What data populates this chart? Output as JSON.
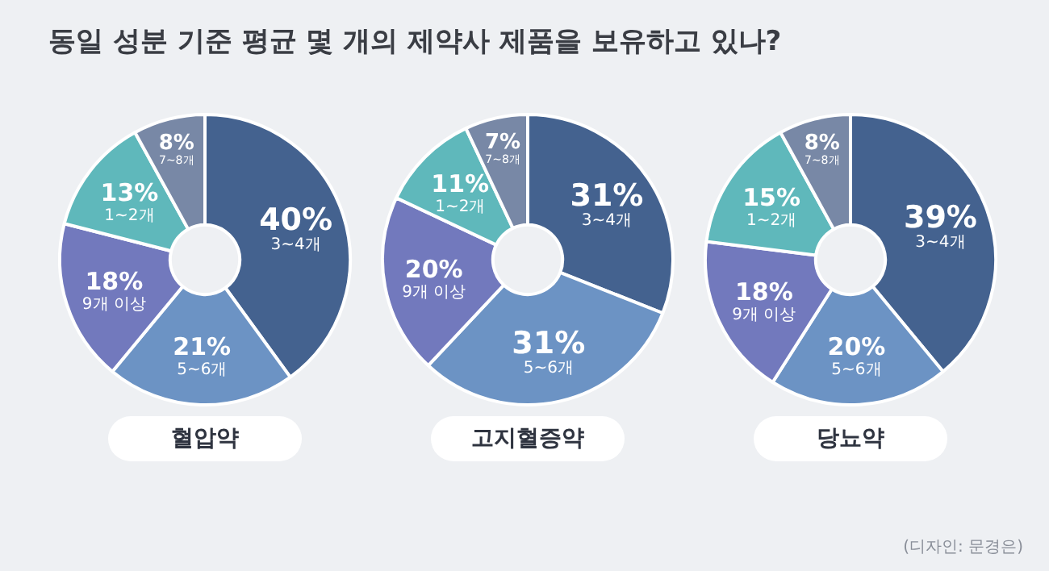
{
  "chart_data": [
    {
      "type": "donut",
      "title": "동일 성분 기준 평균 몇 개의 제약사 제품을  보유하고 있나?",
      "subtitle": "혈압약",
      "categories": [
        "3~4개",
        "5~6개",
        "9개 이상",
        "1~2개",
        "7~8개"
      ],
      "values": [
        40,
        21,
        18,
        13,
        8
      ],
      "value_labels": [
        "40%",
        "21%",
        "18%",
        "13%",
        "8%"
      ],
      "colors": [
        "#44628f",
        "#6c93c4",
        "#7279bd",
        "#5fb8bb",
        "#7888a6"
      ]
    },
    {
      "type": "donut",
      "subtitle": "고지혈증약",
      "categories": [
        "3~4개",
        "5~6개",
        "9개 이상",
        "1~2개",
        "7~8개"
      ],
      "values": [
        31,
        31,
        20,
        11,
        7
      ],
      "value_labels": [
        "31%",
        "31%",
        "20%",
        "11%",
        "7%"
      ],
      "colors": [
        "#44628f",
        "#6c93c4",
        "#7279bd",
        "#5fb8bb",
        "#7888a6"
      ]
    },
    {
      "type": "donut",
      "subtitle": "당뇨약",
      "categories": [
        "3~4개",
        "5~6개",
        "9개 이상",
        "1~2개",
        "7~8개"
      ],
      "values": [
        39,
        20,
        18,
        15,
        8
      ],
      "value_labels": [
        "39%",
        "20%",
        "18%",
        "15%",
        "8%"
      ],
      "colors": [
        "#44628f",
        "#6c93c4",
        "#7279bd",
        "#5fb8bb",
        "#7888a6"
      ],
      "annotations": [
        "(디자인: 문경은)"
      ]
    }
  ]
}
